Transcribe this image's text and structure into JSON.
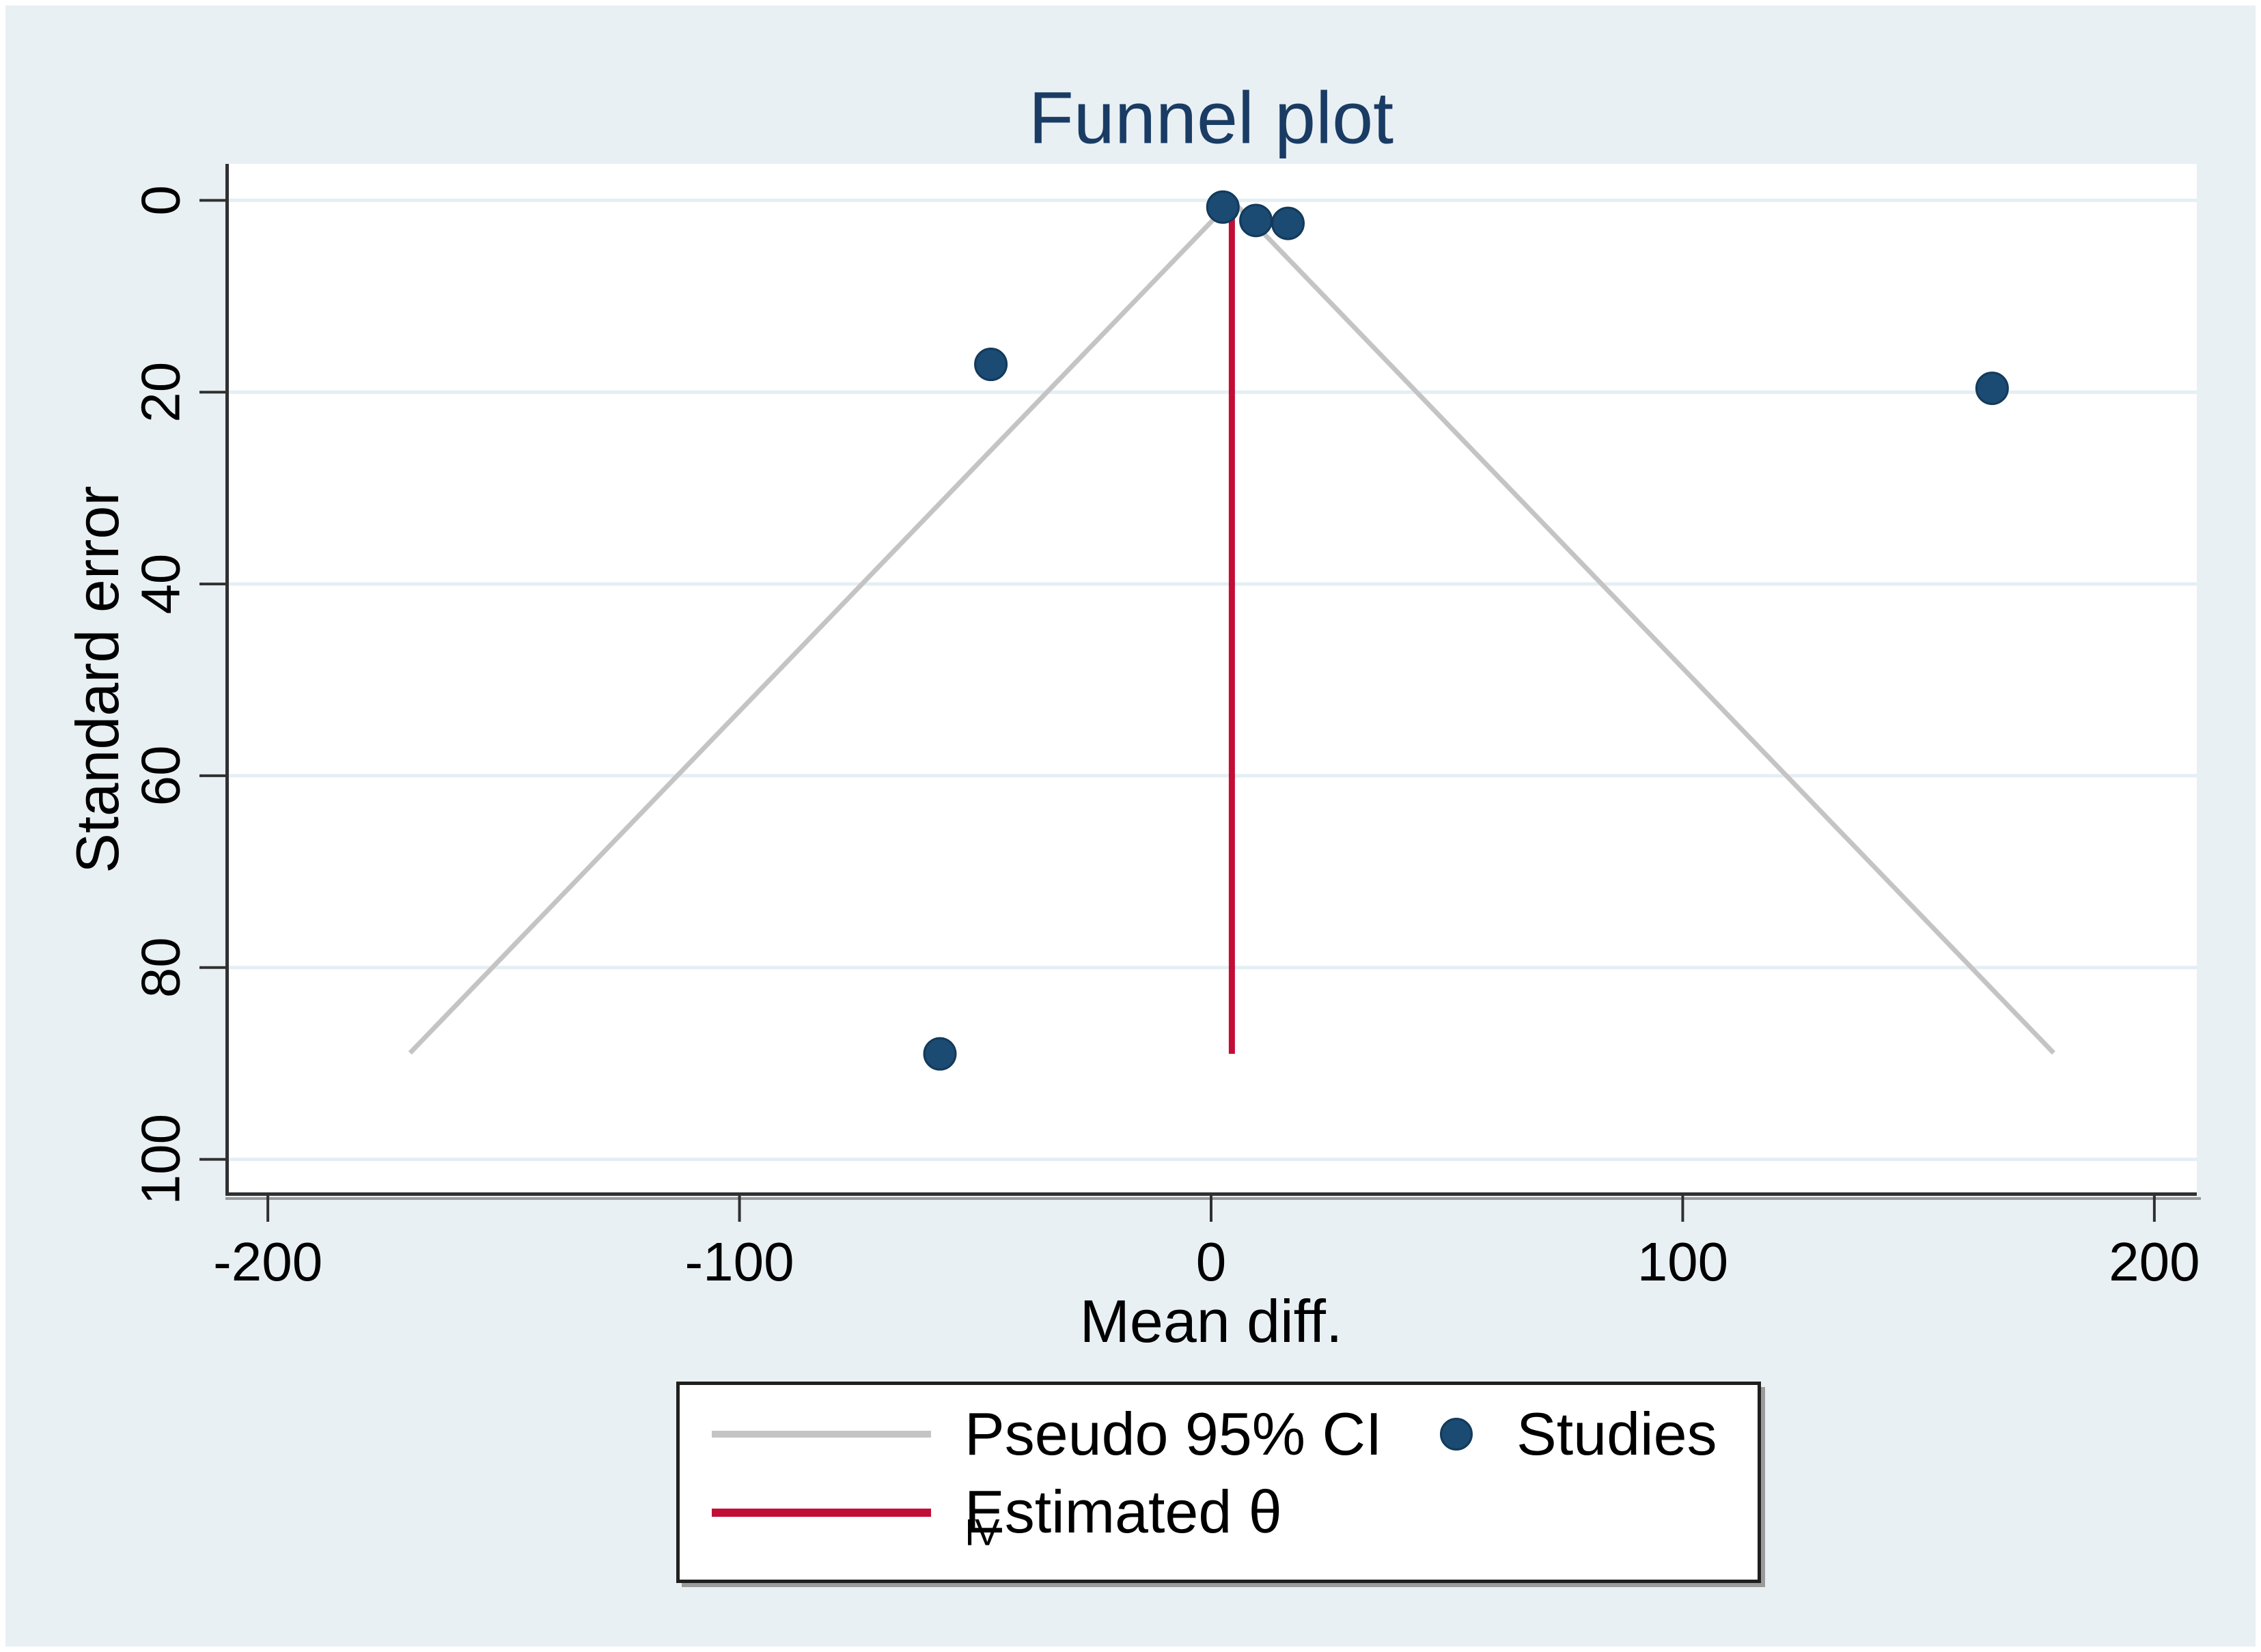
{
  "chart_data": {
    "type": "scatter",
    "title": "Funnel plot",
    "xlabel": "Mean diff.",
    "ylabel": "Standard error",
    "x_ticks": [
      -200,
      -100,
      0,
      100,
      200
    ],
    "y_ticks": [
      0,
      20,
      40,
      60,
      80,
      100
    ],
    "xlim": [
      -209,
      209
    ],
    "ylim": [
      -3.8,
      103.8
    ],
    "y_axis_reversed_note": "standard error increases downward",
    "grid": "horizontal-only",
    "studies": [
      {
        "x": 2.5,
        "se": 0.7
      },
      {
        "x": 9.5,
        "se": 2.1
      },
      {
        "x": 16.3,
        "se": 2.4
      },
      {
        "x": -46.7,
        "se": 17.1
      },
      {
        "x": 165.6,
        "se": 19.6
      },
      {
        "x": -57.5,
        "se": 89.0
      }
    ],
    "estimate": {
      "theta": 4.4,
      "se_start": 0,
      "se_end": 89.0
    },
    "pseudo_ci": {
      "z": 1.96,
      "se_end": 88.9
    },
    "legend": {
      "pseudo_ci": "Pseudo 95% CI",
      "studies": "Studies",
      "estimate_main": "Estimated θ",
      "estimate_sub": "IV",
      "position": "bottom-center"
    },
    "colors": {
      "background": "#E9F0F3",
      "plot_bg": "#FFFFFF",
      "gridline": "#E4EFF4",
      "axis": "#303030",
      "axis_shadow": "#9B9B9B",
      "tick_text": "#000000",
      "title_text": "#1A3C64",
      "studies_fill": "#1B4A72",
      "studies_stroke": "#133A5B",
      "ci_line": "#C4C4C4",
      "estimate_line": "#C20E36"
    }
  }
}
